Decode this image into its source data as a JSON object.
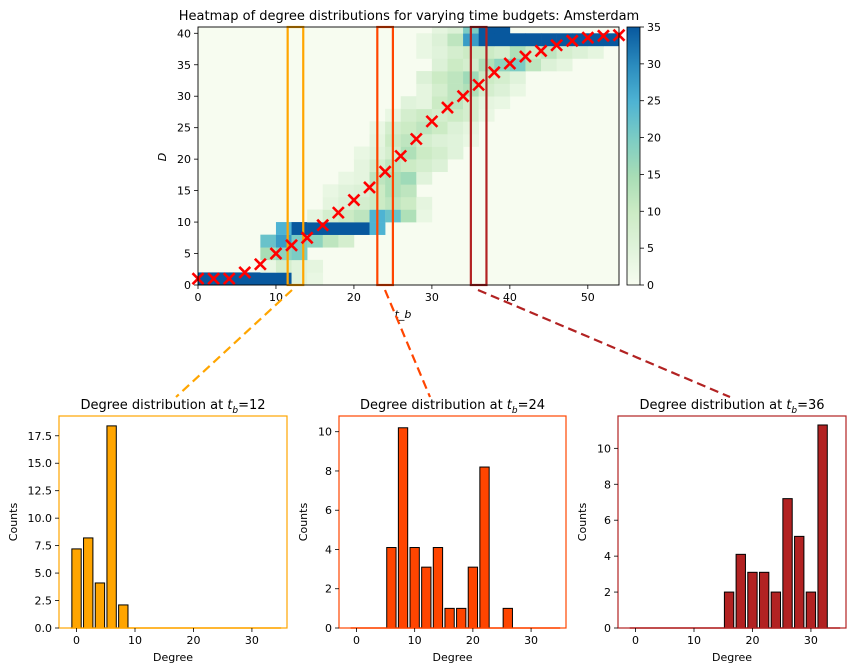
{
  "colors": {
    "tb12": "#FFA500",
    "tb24": "#FF4500",
    "tb36": "#B22222",
    "marker": "#FF0000",
    "cmap": [
      "#f7fcf0",
      "#e0f3db",
      "#ccebc5",
      "#a8ddb5",
      "#7bccc4",
      "#4eb3d3",
      "#2b8cbe",
      "#08589e"
    ]
  },
  "chart_data": [
    {
      "type": "heatmap",
      "title": "Heatmap of degree distributions for varying time budgets: Amsterdam",
      "xlabel": "t_b",
      "ylabel": "D",
      "xlim": [
        0,
        54
      ],
      "ylim": [
        0,
        41
      ],
      "xticks": [
        0,
        10,
        20,
        30,
        40,
        50
      ],
      "yticks": [
        0,
        5,
        10,
        15,
        20,
        25,
        30,
        35,
        40
      ],
      "colorbar": {
        "range": [
          0,
          35
        ],
        "ticks": [
          0,
          5,
          10,
          15,
          20,
          25,
          30,
          35
        ]
      },
      "cells_note": "each cell = [t_b column start, degree row start, count]; column width 2, row height 2",
      "cells": [
        [
          0,
          0,
          35
        ],
        [
          2,
          0,
          35
        ],
        [
          4,
          0,
          35
        ],
        [
          6,
          0,
          35
        ],
        [
          8,
          0,
          35
        ],
        [
          10,
          0,
          35
        ],
        [
          12,
          0,
          5
        ],
        [
          14,
          0,
          3
        ],
        [
          8,
          2,
          3
        ],
        [
          10,
          2,
          8
        ],
        [
          12,
          2,
          5
        ],
        [
          14,
          2,
          4
        ],
        [
          8,
          4,
          15
        ],
        [
          10,
          4,
          18
        ],
        [
          12,
          4,
          20
        ],
        [
          8,
          6,
          22
        ],
        [
          10,
          6,
          28
        ],
        [
          12,
          6,
          20
        ],
        [
          14,
          6,
          18
        ],
        [
          16,
          6,
          12
        ],
        [
          18,
          6,
          8
        ],
        [
          10,
          8,
          25
        ],
        [
          12,
          8,
          35
        ],
        [
          14,
          8,
          35
        ],
        [
          16,
          8,
          35
        ],
        [
          18,
          8,
          35
        ],
        [
          20,
          8,
          35
        ],
        [
          22,
          8,
          25
        ],
        [
          14,
          10,
          4
        ],
        [
          16,
          10,
          8
        ],
        [
          18,
          10,
          10
        ],
        [
          20,
          10,
          12
        ],
        [
          22,
          10,
          25
        ],
        [
          24,
          10,
          22
        ],
        [
          26,
          10,
          14
        ],
        [
          28,
          10,
          3
        ],
        [
          16,
          12,
          4
        ],
        [
          18,
          12,
          6
        ],
        [
          20,
          12,
          8
        ],
        [
          22,
          12,
          10
        ],
        [
          24,
          12,
          12
        ],
        [
          26,
          12,
          10
        ],
        [
          28,
          12,
          4
        ],
        [
          16,
          14,
          3
        ],
        [
          18,
          14,
          5
        ],
        [
          20,
          14,
          6
        ],
        [
          22,
          14,
          10
        ],
        [
          24,
          14,
          14
        ],
        [
          26,
          14,
          12
        ],
        [
          18,
          16,
          3
        ],
        [
          20,
          16,
          4
        ],
        [
          22,
          16,
          12
        ],
        [
          24,
          16,
          14
        ],
        [
          26,
          16,
          16
        ],
        [
          28,
          16,
          5
        ],
        [
          20,
          18,
          4
        ],
        [
          22,
          18,
          8
        ],
        [
          24,
          18,
          12
        ],
        [
          26,
          18,
          10
        ],
        [
          28,
          18,
          8
        ],
        [
          30,
          18,
          6
        ],
        [
          20,
          20,
          3
        ],
        [
          22,
          20,
          5
        ],
        [
          24,
          20,
          8
        ],
        [
          26,
          20,
          14
        ],
        [
          28,
          20,
          10
        ],
        [
          30,
          20,
          8
        ],
        [
          32,
          20,
          5
        ],
        [
          22,
          22,
          4
        ],
        [
          24,
          22,
          10
        ],
        [
          26,
          22,
          12
        ],
        [
          28,
          22,
          8
        ],
        [
          30,
          22,
          6
        ],
        [
          32,
          22,
          5
        ],
        [
          34,
          22,
          3
        ],
        [
          22,
          24,
          3
        ],
        [
          24,
          24,
          8
        ],
        [
          26,
          24,
          10
        ],
        [
          28,
          24,
          12
        ],
        [
          30,
          24,
          10
        ],
        [
          32,
          24,
          6
        ],
        [
          34,
          24,
          4
        ],
        [
          24,
          26,
          3
        ],
        [
          26,
          26,
          8
        ],
        [
          28,
          26,
          10
        ],
        [
          30,
          26,
          8
        ],
        [
          32,
          26,
          10
        ],
        [
          34,
          26,
          8
        ],
        [
          36,
          26,
          3
        ],
        [
          26,
          28,
          5
        ],
        [
          28,
          28,
          4
        ],
        [
          30,
          28,
          10
        ],
        [
          32,
          28,
          12
        ],
        [
          34,
          28,
          8
        ],
        [
          36,
          28,
          4
        ],
        [
          38,
          28,
          3
        ],
        [
          28,
          30,
          4
        ],
        [
          30,
          30,
          8
        ],
        [
          32,
          30,
          12
        ],
        [
          34,
          30,
          14
        ],
        [
          36,
          30,
          8
        ],
        [
          38,
          30,
          6
        ],
        [
          40,
          30,
          3
        ],
        [
          28,
          32,
          6
        ],
        [
          30,
          32,
          10
        ],
        [
          32,
          32,
          12
        ],
        [
          34,
          32,
          16
        ],
        [
          36,
          32,
          10
        ],
        [
          38,
          32,
          8
        ],
        [
          40,
          32,
          5
        ],
        [
          30,
          34,
          6
        ],
        [
          32,
          34,
          10
        ],
        [
          34,
          34,
          8
        ],
        [
          36,
          34,
          14
        ],
        [
          38,
          34,
          18
        ],
        [
          40,
          34,
          20
        ],
        [
          42,
          34,
          12
        ],
        [
          44,
          34,
          6
        ],
        [
          46,
          34,
          4
        ],
        [
          28,
          36,
          3
        ],
        [
          30,
          36,
          5
        ],
        [
          32,
          36,
          8
        ],
        [
          34,
          36,
          10
        ],
        [
          36,
          36,
          10
        ],
        [
          38,
          36,
          8
        ],
        [
          40,
          36,
          14
        ],
        [
          42,
          36,
          10
        ],
        [
          44,
          36,
          12
        ],
        [
          46,
          36,
          8
        ],
        [
          48,
          36,
          6
        ],
        [
          50,
          36,
          4
        ],
        [
          28,
          38,
          3
        ],
        [
          30,
          38,
          6
        ],
        [
          32,
          38,
          12
        ],
        [
          34,
          38,
          28
        ],
        [
          36,
          38,
          35
        ],
        [
          38,
          38,
          35
        ],
        [
          40,
          38,
          35
        ],
        [
          42,
          38,
          35
        ],
        [
          44,
          38,
          35
        ],
        [
          46,
          38,
          35
        ],
        [
          48,
          38,
          35
        ],
        [
          50,
          38,
          35
        ],
        [
          52,
          38,
          35
        ],
        [
          30,
          40,
          4
        ],
        [
          32,
          40,
          6
        ],
        [
          34,
          40,
          20
        ],
        [
          36,
          40,
          35
        ],
        [
          38,
          40,
          35
        ]
      ],
      "mean_markers_note": "x markers at [t_b, mean degree]",
      "mean_markers": [
        [
          0,
          1
        ],
        [
          2,
          1
        ],
        [
          4,
          1
        ],
        [
          6,
          2
        ],
        [
          8,
          3.3
        ],
        [
          10,
          5
        ],
        [
          12,
          6.3
        ],
        [
          14,
          7.5
        ],
        [
          16,
          9.5
        ],
        [
          18,
          11.5
        ],
        [
          20,
          13.5
        ],
        [
          22,
          15.5
        ],
        [
          24,
          18
        ],
        [
          26,
          20.5
        ],
        [
          28,
          23.2
        ],
        [
          30,
          26
        ],
        [
          32,
          28.2
        ],
        [
          34,
          30
        ],
        [
          36,
          31.8
        ],
        [
          38,
          33.8
        ],
        [
          40,
          35.2
        ],
        [
          42,
          36.3
        ],
        [
          44,
          37.2
        ],
        [
          46,
          38.1
        ],
        [
          48,
          38.8
        ],
        [
          50,
          39.3
        ],
        [
          52,
          39.6
        ],
        [
          54,
          39.7
        ]
      ],
      "highlight_bands": [
        {
          "t_b": 12,
          "x_range": [
            11.5,
            13.5
          ],
          "color_key": "tb12"
        },
        {
          "t_b": 24,
          "x_range": [
            23,
            25
          ],
          "color_key": "tb24"
        },
        {
          "t_b": 36,
          "x_range": [
            35,
            37
          ],
          "color_key": "tb36"
        }
      ]
    },
    {
      "type": "bar",
      "title_prefix": "Degree distribution at ",
      "title_var": "t",
      "title_sub": "b",
      "title_value": "=12",
      "xlabel": "Degree",
      "ylabel": "Counts",
      "color_key": "tb12",
      "x": [
        0,
        2,
        4,
        6,
        8
      ],
      "values": [
        7.2,
        8.2,
        4.1,
        18.4,
        2.1
      ],
      "xlim": [
        -3,
        36
      ],
      "ylim": [
        0,
        19.3
      ],
      "xticks": [
        0,
        10,
        20,
        30
      ],
      "yticks": [
        0.0,
        2.5,
        5.0,
        7.5,
        10.0,
        12.5,
        15.0,
        17.5
      ],
      "ytick_labels": [
        "0.0",
        "2.5",
        "5.0",
        "7.5",
        "10.0",
        "12.5",
        "15.0",
        "17.5"
      ]
    },
    {
      "type": "bar",
      "title_prefix": "Degree distribution at ",
      "title_var": "t",
      "title_sub": "b",
      "title_value": "=24",
      "xlabel": "Degree",
      "ylabel": "Counts",
      "color_key": "tb24",
      "x": [
        6,
        8,
        10,
        12,
        14,
        16,
        18,
        20,
        22,
        26
      ],
      "values": [
        4.1,
        10.2,
        4.1,
        3.1,
        4.1,
        1.0,
        1.0,
        3.1,
        8.2,
        1.0
      ],
      "xlim": [
        -3,
        36
      ],
      "ylim": [
        0,
        10.8
      ],
      "xticks": [
        0,
        10,
        20,
        30
      ],
      "yticks": [
        0,
        2,
        4,
        6,
        8,
        10
      ],
      "ytick_labels": [
        "0",
        "2",
        "4",
        "6",
        "8",
        "10"
      ]
    },
    {
      "type": "bar",
      "title_prefix": "Degree distribution at ",
      "title_var": "t",
      "title_sub": "b",
      "title_value": "=36",
      "xlabel": "Degree",
      "ylabel": "Counts",
      "color_key": "tb36",
      "x": [
        16,
        18,
        20,
        22,
        24,
        26,
        28,
        30,
        32
      ],
      "values": [
        2.0,
        4.1,
        3.1,
        3.1,
        2.0,
        7.2,
        5.1,
        2.0,
        11.3
      ],
      "xlim": [
        -3,
        36
      ],
      "ylim": [
        0,
        11.8
      ],
      "xticks": [
        0,
        10,
        20,
        30
      ],
      "yticks": [
        0,
        2,
        4,
        6,
        8,
        10
      ],
      "ytick_labels": [
        "0",
        "2",
        "4",
        "6",
        "8",
        "10"
      ]
    }
  ]
}
